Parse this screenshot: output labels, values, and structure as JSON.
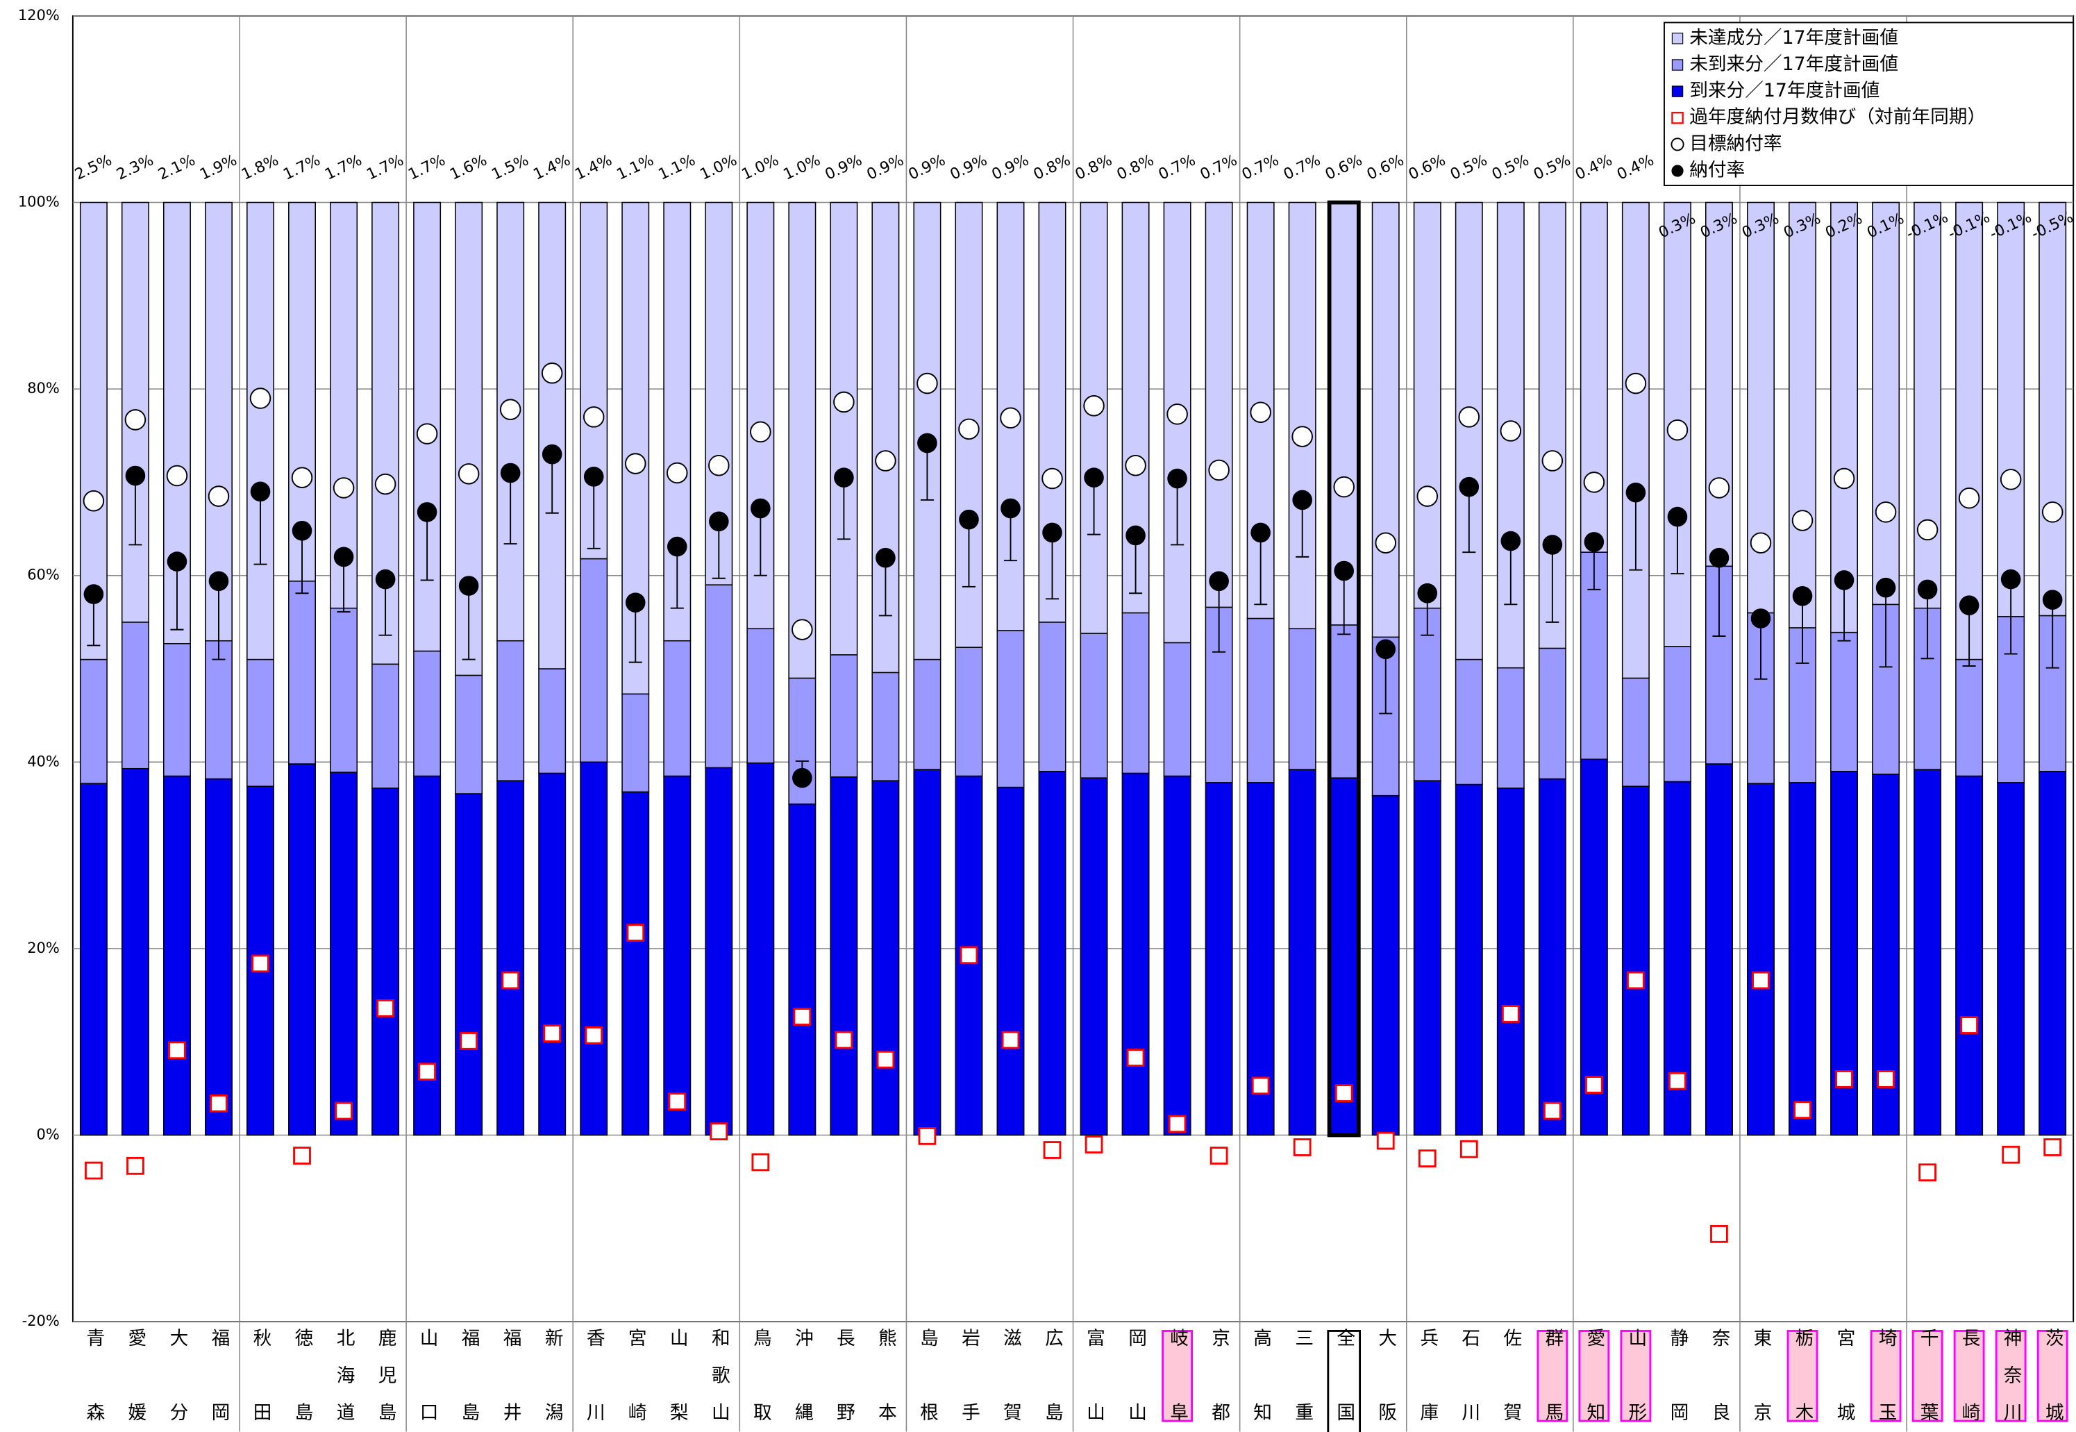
{
  "chart_data": {
    "type": "stacked_bar",
    "categories": [
      "青森",
      "愛媛",
      "大分",
      "福岡",
      "秋田",
      "徳島",
      "北海道",
      "鹿児島",
      "山口",
      "福島",
      "福井",
      "新潟",
      "香川",
      "宮崎",
      "山梨",
      "和歌山",
      "鳥取",
      "沖縄",
      "長野",
      "熊本",
      "島根",
      "岩手",
      "滋賀",
      "広島",
      "富山",
      "岡山",
      "岐阜",
      "京都",
      "高知",
      "三重",
      "全国",
      "大阪",
      "兵庫",
      "石川",
      "佐賀",
      "群馬",
      "愛知",
      "山形",
      "静岡",
      "奈良",
      "東京",
      "栃木",
      "宮城",
      "埼玉",
      "千葉",
      "長崎",
      "神奈川",
      "茨城"
    ],
    "series": [
      {
        "name": "到来分／17年度計画値",
        "color": "#0000ee",
        "values": [
          37.7,
          39.3,
          38.5,
          38.2,
          37.4,
          39.8,
          38.9,
          37.2,
          38.5,
          36.6,
          38,
          38.8,
          40,
          36.8,
          38.5,
          39.4,
          39.9,
          35.5,
          38.4,
          38,
          39.2,
          38.5,
          37.3,
          39,
          38.3,
          38.8,
          38.5,
          37.8,
          37.8,
          39.2,
          38.3,
          36.4,
          38,
          37.6,
          37.2,
          38.2,
          40.3,
          37.4,
          37.9,
          39.8,
          37.7,
          37.8,
          39,
          38.7,
          39.2,
          38.5,
          37.8,
          39
        ]
      },
      {
        "name": "未到来分／17年度計画値",
        "color": "#9999ff",
        "values": [
          13.3,
          15.7,
          14.2,
          14.8,
          13.6,
          19.6,
          17.6,
          13.3,
          13.4,
          12.7,
          15,
          11.2,
          21.8,
          10.5,
          14.5,
          19.6,
          14.4,
          13.5,
          13.1,
          11.6,
          11.8,
          13.8,
          16.8,
          16,
          15.5,
          17.2,
          14.3,
          18.8,
          17.6,
          15.1,
          16.4,
          17,
          18.5,
          13.4,
          12.9,
          14,
          22.2,
          11.6,
          14.5,
          21.2,
          18.3,
          16.6,
          14.9,
          18.2,
          17.3,
          12.5,
          17.8,
          16.7
        ]
      },
      {
        "name": "未達成分／17年度計画値",
        "color": "#ccccff",
        "values": [
          49,
          45,
          47.3,
          47,
          49,
          40.6,
          43.5,
          49.5,
          48.1,
          50.7,
          47,
          50,
          38.2,
          52.7,
          47,
          41,
          45.7,
          51,
          48.5,
          50.4,
          49,
          47.7,
          45.9,
          45,
          46.2,
          44,
          47.2,
          43.4,
          44.6,
          45.7,
          45.3,
          46.6,
          43.5,
          49,
          49.9,
          47.8,
          37.5,
          51,
          47.6,
          39,
          44,
          45.6,
          46.1,
          43.1,
          43.5,
          49,
          44.4,
          44.3
        ]
      }
    ],
    "markers": [
      {
        "name": "過年度納付月数伸び（対前年同期）",
        "shape": "square",
        "color": "#ff0000",
        "values": [
          -3.8,
          -3.3,
          9.1,
          3.4,
          18.4,
          -2.2,
          2.6,
          13.6,
          6.8,
          10.1,
          16.6,
          10.9,
          10.7,
          21.7,
          3.6,
          0.4,
          -2.9,
          12.7,
          10.2,
          8.1,
          -0.1,
          19.3,
          10.2,
          -1.6,
          -1,
          8.3,
          1.2,
          -2.2,
          5.3,
          -1.3,
          4.5,
          -0.6,
          -2.5,
          -1.5,
          13,
          2.6,
          5.4,
          16.6,
          5.8,
          -10.6,
          16.6,
          2.7,
          6,
          6,
          -4,
          11.8,
          -2.1,
          -1.3
        ]
      },
      {
        "name": "目標納付率",
        "shape": "open-circle",
        "color": "#000000",
        "values": [
          68,
          76.7,
          70.7,
          68.5,
          79,
          70.5,
          69.4,
          69.8,
          75.2,
          70.9,
          77.8,
          81.7,
          77,
          72,
          71,
          71.8,
          75.4,
          54.2,
          78.6,
          72.3,
          80.6,
          75.7,
          76.9,
          70.4,
          78.2,
          71.8,
          77.3,
          71.3,
          77.5,
          74.9,
          69.5,
          63.5,
          68.5,
          77,
          75.5,
          72.3,
          70,
          80.6,
          75.6,
          69.4,
          63.5,
          65.9,
          70.4,
          66.8,
          64.9,
          68.3,
          70.3,
          66.8
        ]
      },
      {
        "name": "納付率",
        "shape": "dot",
        "color": "#000000",
        "values": [
          58,
          70.7,
          61.5,
          59.4,
          69,
          64.8,
          62,
          59.6,
          66.8,
          58.9,
          71,
          73,
          70.6,
          57.1,
          63.1,
          65.8,
          67.2,
          38.3,
          70.5,
          61.9,
          74.2,
          66,
          67.2,
          64.6,
          70.5,
          64.3,
          70.4,
          59.4,
          64.6,
          68.1,
          60.5,
          52.1,
          58.1,
          69.5,
          63.7,
          63.3,
          63.6,
          68.9,
          66.3,
          61.9,
          55.4,
          57.8,
          59.5,
          58.7,
          58.5,
          56.8,
          59.6,
          57.4
        ],
        "error_low": [
          52.5,
          63.3,
          54.2,
          51,
          61.2,
          58.1,
          56.1,
          53.6,
          59.5,
          51,
          63.4,
          66.7,
          62.9,
          50.7,
          56.5,
          59.7,
          60,
          40.1,
          63.9,
          55.7,
          68.1,
          58.8,
          61.6,
          57.5,
          64.4,
          58.1,
          63.3,
          51.8,
          56.9,
          62,
          53.7,
          45.2,
          53.6,
          62.5,
          56.9,
          55,
          58.5,
          60.6,
          60.2,
          53.5,
          48.9,
          50.6,
          53,
          50.2,
          51.1,
          50.3,
          51.6,
          50.1
        ]
      }
    ],
    "top_labels": {
      "values": [
        2.5,
        2.3,
        2.1,
        1.9,
        1.8,
        1.7,
        1.7,
        1.7,
        1.7,
        1.6,
        1.5,
        1.4,
        1.4,
        1.1,
        1.1,
        1.0,
        1.0,
        1.0,
        0.9,
        0.9,
        0.9,
        0.9,
        0.9,
        0.8,
        0.8,
        0.8,
        0.7,
        0.7,
        0.7,
        0.7,
        0.6,
        0.6,
        0.6,
        0.5,
        0.5,
        0.5,
        0.4,
        0.4,
        0.3,
        0.3,
        0.3,
        0.3,
        0.2,
        0.1,
        -0.1,
        -0.1,
        -0.1,
        -0.5
      ],
      "value_labels": [
        "2.5%",
        "2.3%",
        "2.1%",
        "1.9%",
        "1.8%",
        "1.7%",
        "1.7%",
        "1.7%",
        "1.7%",
        "1.6%",
        "1.5%",
        "1.4%",
        "1.4%",
        "1.1%",
        "1.1%",
        "1.0%",
        "1.0%",
        "1.0%",
        "0.9%",
        "0.9%",
        "0.9%",
        "0.9%",
        "0.9%",
        "0.8%",
        "0.8%",
        "0.8%",
        "0.7%",
        "0.7%",
        "0.7%",
        "0.7%",
        "0.6%",
        "0.6%",
        "0.6%",
        "0.5%",
        "0.5%",
        "0.5%",
        "0.4%",
        "0.4%",
        "0.3%",
        "0.3%",
        "0.3%",
        "0.3%",
        "0.2%",
        "0.1%",
        "-0.1%",
        "-0.1%",
        "-0.1%",
        "-0.5%"
      ],
      "negative_color": "#ff0000"
    },
    "ylim": [
      -20,
      120
    ],
    "yticks": [
      {
        "value": -20,
        "label": "-20%"
      },
      {
        "value": 0,
        "label": "0%"
      },
      {
        "value": 20,
        "label": "20%"
      },
      {
        "value": 40,
        "label": "40%"
      },
      {
        "value": 60,
        "label": "60%"
      },
      {
        "value": 80,
        "label": "80%"
      },
      {
        "value": 100,
        "label": "100%"
      },
      {
        "value": 120,
        "label": "120%"
      }
    ],
    "grid": true,
    "legend": "top-right",
    "highlight": [
      26,
      35,
      36,
      37,
      41,
      43,
      44,
      45,
      46,
      47
    ],
    "highlight_color": "#ffc8d8",
    "emphasis": 30
  }
}
